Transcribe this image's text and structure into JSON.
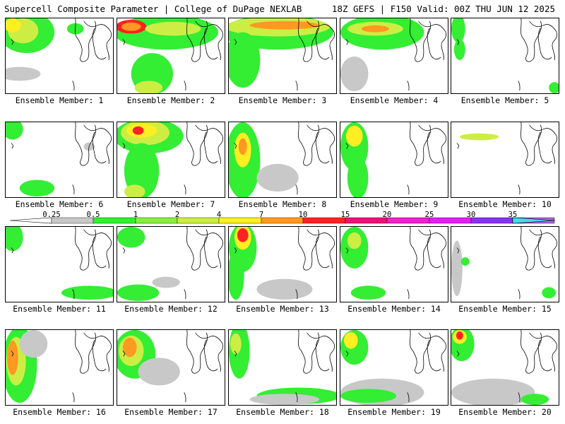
{
  "header": {
    "title": "Supercell Composite Parameter | College of DuPage NEXLAB",
    "valid": "18Z GEFS | F150 Valid: 00Z THU JUN 12 2025"
  },
  "legend": {
    "ticks": [
      "0.25",
      "0.5",
      "1",
      "2",
      "4",
      "7",
      "10",
      "15",
      "20",
      "25",
      "30",
      "35"
    ],
    "colors": [
      "#c8c8c8",
      "#33ee33",
      "#88ee44",
      "#ccee44",
      "#ffee22",
      "#ff9922",
      "#ff2222",
      "#ee1177",
      "#ee22cc",
      "#dd22ee",
      "#8833ee",
      "#aa66dd",
      "#44ddee"
    ]
  },
  "panels": [
    {
      "caption": "Ensemble Member: 1"
    },
    {
      "caption": "Ensemble Member: 2"
    },
    {
      "caption": "Ensemble Member: 3"
    },
    {
      "caption": "Ensemble Member: 4"
    },
    {
      "caption": "Ensemble Member: 5"
    },
    {
      "caption": "Ensemble Member: 6"
    },
    {
      "caption": "Ensemble Member: 7"
    },
    {
      "caption": "Ensemble Member: 8"
    },
    {
      "caption": "Ensemble Member: 9"
    },
    {
      "caption": "Ensemble Member: 10"
    },
    {
      "caption": "Ensemble Member: 11"
    },
    {
      "caption": "Ensemble Member: 12"
    },
    {
      "caption": "Ensemble Member: 13"
    },
    {
      "caption": "Ensemble Member: 14"
    },
    {
      "caption": "Ensemble Member: 15"
    },
    {
      "caption": "Ensemble Member: 16"
    },
    {
      "caption": "Ensemble Member: 17"
    },
    {
      "caption": "Ensemble Member: 18"
    },
    {
      "caption": "Ensemble Member: 19"
    },
    {
      "caption": "Ensemble Member: 20"
    }
  ]
}
